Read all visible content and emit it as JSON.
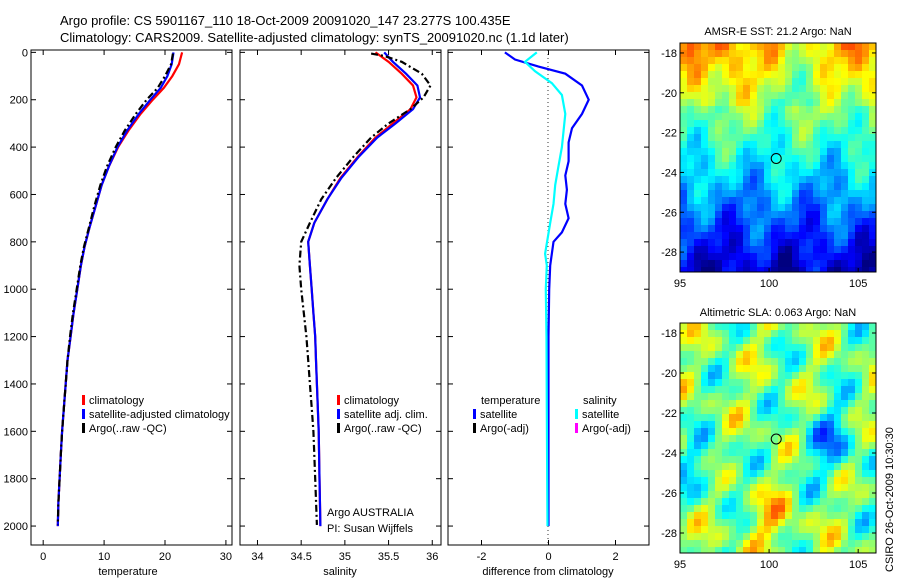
{
  "header": {
    "line1": "Argo profile: CS 5901167_110 18-Oct-2009 20091020_147 23.277S 100.435E",
    "line2": "Climatology: CARS2009. Satellite-adjusted climatology: synTS_20091020.nc (1.1d later)"
  },
  "credit": {
    "institution": "Argo AUSTRALIA",
    "pi": "PI: Susan Wijffels",
    "stamp": "CSIRO 26-Oct-2009 10:30:30"
  },
  "chart_data": [
    {
      "type": "line",
      "id": "temperature",
      "xlabel": "temperature",
      "ylabel": "",
      "xlim": [
        -2,
        31
      ],
      "ylim": [
        2080,
        -10
      ],
      "y_reversed": true,
      "xticks": [
        0,
        10,
        20,
        30
      ],
      "yticks": [
        0,
        200,
        400,
        600,
        800,
        1000,
        1200,
        1400,
        1600,
        1800,
        2000
      ],
      "legend": [
        "climatology",
        "satellite-adjusted climatology",
        "Argo(..raw -QC)"
      ],
      "series": [
        {
          "name": "climatology",
          "color": "#ff0000",
          "style": "solid",
          "points": [
            [
              22.8,
              0
            ],
            [
              22.3,
              50
            ],
            [
              21.2,
              100
            ],
            [
              19.8,
              150
            ],
            [
              18.0,
              200
            ],
            [
              16.0,
              260
            ],
            [
              14.0,
              330
            ],
            [
              12.3,
              400
            ],
            [
              10.8,
              480
            ],
            [
              9.6,
              560
            ],
            [
              8.6,
              650
            ],
            [
              7.6,
              740
            ],
            [
              6.8,
              820
            ],
            [
              6.2,
              900
            ],
            [
              5.6,
              1000
            ],
            [
              5.0,
              1100
            ],
            [
              4.5,
              1200
            ],
            [
              4.0,
              1300
            ],
            [
              3.7,
              1400
            ],
            [
              3.4,
              1500
            ],
            [
              3.1,
              1600
            ],
            [
              2.9,
              1700
            ],
            [
              2.7,
              1800
            ],
            [
              2.5,
              1900
            ],
            [
              2.4,
              2000
            ]
          ]
        },
        {
          "name": "satellite-adjusted climatology",
          "color": "#0000ff",
          "style": "solid",
          "points": [
            [
              21.4,
              0
            ],
            [
              21.1,
              50
            ],
            [
              20.4,
              100
            ],
            [
              19.3,
              150
            ],
            [
              17.6,
              200
            ],
            [
              15.7,
              260
            ],
            [
              13.8,
              330
            ],
            [
              12.2,
              400
            ],
            [
              10.8,
              480
            ],
            [
              9.6,
              560
            ],
            [
              8.6,
              650
            ],
            [
              7.6,
              740
            ],
            [
              6.8,
              820
            ],
            [
              6.2,
              900
            ],
            [
              5.6,
              1000
            ],
            [
              5.0,
              1100
            ],
            [
              4.5,
              1200
            ],
            [
              4.0,
              1300
            ],
            [
              3.7,
              1400
            ],
            [
              3.4,
              1500
            ],
            [
              3.1,
              1600
            ],
            [
              2.9,
              1700
            ],
            [
              2.7,
              1800
            ],
            [
              2.5,
              1900
            ],
            [
              2.4,
              2000
            ]
          ]
        },
        {
          "name": "Argo(..raw -QC)",
          "color": "#000000",
          "style": "dashdot",
          "points": [
            [
              21.3,
              5
            ],
            [
              21.0,
              50
            ],
            [
              20.0,
              100
            ],
            [
              18.8,
              150
            ],
            [
              17.0,
              200
            ],
            [
              15.2,
              260
            ],
            [
              13.4,
              330
            ],
            [
              11.9,
              400
            ],
            [
              10.5,
              480
            ],
            [
              9.4,
              560
            ],
            [
              8.4,
              650
            ],
            [
              7.5,
              740
            ],
            [
              6.7,
              820
            ],
            [
              6.1,
              900
            ],
            [
              5.5,
              1000
            ],
            [
              4.9,
              1100
            ],
            [
              4.4,
              1200
            ],
            [
              4.0,
              1300
            ],
            [
              3.7,
              1400
            ],
            [
              3.4,
              1500
            ],
            [
              3.1,
              1600
            ],
            [
              2.9,
              1700
            ],
            [
              2.7,
              1800
            ],
            [
              2.5,
              1900
            ],
            [
              2.4,
              1995
            ]
          ]
        }
      ]
    },
    {
      "type": "line",
      "id": "salinity",
      "xlabel": "salinity",
      "ylabel": "",
      "xlim": [
        33.8,
        36.1
      ],
      "ylim": [
        2080,
        -10
      ],
      "y_reversed": true,
      "xticks": [
        34,
        34.5,
        35,
        35.5,
        36
      ],
      "legend": [
        "climatology",
        "satellite adj. clim.",
        "Argo(..raw -QC)"
      ],
      "series": [
        {
          "name": "climatology",
          "color": "#ff0000",
          "style": "solid",
          "points": [
            [
              35.35,
              0
            ],
            [
              35.5,
              40
            ],
            [
              35.65,
              90
            ],
            [
              35.78,
              140
            ],
            [
              35.82,
              190
            ],
            [
              35.75,
              240
            ],
            [
              35.55,
              300
            ],
            [
              35.35,
              360
            ],
            [
              35.15,
              440
            ],
            [
              34.95,
              530
            ],
            [
              34.8,
              620
            ],
            [
              34.65,
              720
            ],
            [
              34.58,
              800
            ],
            [
              34.6,
              900
            ],
            [
              34.62,
              1000
            ],
            [
              34.64,
              1100
            ],
            [
              34.66,
              1200
            ],
            [
              34.67,
              1300
            ],
            [
              34.68,
              1400
            ],
            [
              34.69,
              1500
            ],
            [
              34.7,
              1600
            ],
            [
              34.71,
              1800
            ],
            [
              34.72,
              2000
            ]
          ]
        },
        {
          "name": "satellite adj. clim.",
          "color": "#0000ff",
          "style": "solid",
          "points": [
            [
              35.45,
              0
            ],
            [
              35.55,
              40
            ],
            [
              35.7,
              90
            ],
            [
              35.83,
              140
            ],
            [
              35.86,
              190
            ],
            [
              35.78,
              240
            ],
            [
              35.58,
              300
            ],
            [
              35.37,
              360
            ],
            [
              35.16,
              440
            ],
            [
              34.96,
              530
            ],
            [
              34.8,
              620
            ],
            [
              34.65,
              720
            ],
            [
              34.58,
              800
            ],
            [
              34.6,
              900
            ],
            [
              34.62,
              1000
            ],
            [
              34.64,
              1100
            ],
            [
              34.66,
              1200
            ],
            [
              34.67,
              1300
            ],
            [
              34.68,
              1400
            ],
            [
              34.69,
              1500
            ],
            [
              34.7,
              1600
            ],
            [
              34.71,
              1800
            ],
            [
              34.72,
              2000
            ]
          ]
        },
        {
          "name": "Argo(..raw -QC)",
          "color": "#000000",
          "style": "dashdot",
          "points": [
            [
              35.3,
              5
            ],
            [
              35.45,
              15
            ],
            [
              35.65,
              40
            ],
            [
              35.88,
              90
            ],
            [
              35.98,
              140
            ],
            [
              35.9,
              190
            ],
            [
              35.75,
              240
            ],
            [
              35.5,
              300
            ],
            [
              35.3,
              360
            ],
            [
              35.1,
              440
            ],
            [
              34.9,
              530
            ],
            [
              34.73,
              620
            ],
            [
              34.6,
              720
            ],
            [
              34.5,
              800
            ],
            [
              34.48,
              900
            ],
            [
              34.5,
              1000
            ],
            [
              34.53,
              1100
            ],
            [
              34.56,
              1200
            ],
            [
              34.58,
              1300
            ],
            [
              34.6,
              1400
            ],
            [
              34.62,
              1500
            ],
            [
              34.64,
              1600
            ],
            [
              34.66,
              1800
            ],
            [
              34.68,
              1995
            ]
          ]
        }
      ]
    },
    {
      "type": "line",
      "id": "difference",
      "xlabel": "difference from climatology",
      "ylabel": "",
      "xlim": [
        -3,
        3
      ],
      "ylim": [
        2080,
        -10
      ],
      "y_reversed": true,
      "xticks": [
        -2,
        0,
        2
      ],
      "legend_groups": [
        "temperature",
        "salinity"
      ],
      "legend": [
        "satellite",
        "Argo(-adj)",
        "satellite",
        "Argo(-adj)"
      ],
      "series": [
        {
          "name": "satellite",
          "group": "temperature",
          "color": "#0000ff",
          "style": "solid",
          "points": [
            [
              -1.3,
              0
            ],
            [
              -1.0,
              30
            ],
            [
              -0.3,
              60
            ],
            [
              0.5,
              90
            ],
            [
              1.0,
              140
            ],
            [
              1.2,
              200
            ],
            [
              1.0,
              260
            ],
            [
              0.7,
              320
            ],
            [
              0.6,
              380
            ],
            [
              0.6,
              460
            ],
            [
              0.5,
              520
            ],
            [
              0.55,
              580
            ],
            [
              0.5,
              640
            ],
            [
              0.6,
              700
            ],
            [
              0.4,
              760
            ],
            [
              0.15,
              800
            ],
            [
              0.05,
              900
            ],
            [
              0.02,
              1000
            ],
            [
              0.0,
              1200
            ],
            [
              0.0,
              1500
            ],
            [
              0.0,
              2000
            ]
          ]
        },
        {
          "name": "satellite",
          "group": "salinity",
          "color": "#00ffff",
          "style": "solid",
          "points": [
            [
              -0.35,
              0
            ],
            [
              -0.7,
              40
            ],
            [
              -0.4,
              80
            ],
            [
              0.1,
              130
            ],
            [
              0.4,
              180
            ],
            [
              0.5,
              260
            ],
            [
              0.45,
              330
            ],
            [
              0.4,
              400
            ],
            [
              0.3,
              480
            ],
            [
              0.2,
              560
            ],
            [
              0.15,
              640
            ],
            [
              0.05,
              720
            ],
            [
              -0.1,
              850
            ],
            [
              -0.05,
              900
            ],
            [
              -0.08,
              1000
            ],
            [
              -0.06,
              1200
            ],
            [
              -0.05,
              1500
            ],
            [
              -0.04,
              1800
            ],
            [
              -0.03,
              2000
            ]
          ]
        },
        {
          "name": "Argo(-adj)",
          "group": "temperature",
          "color": "#000000",
          "style": "dashdot",
          "points": []
        },
        {
          "name": "Argo(-adj)",
          "group": "salinity",
          "color": "#ff00ff",
          "style": "dashdot",
          "points": []
        }
      ]
    },
    {
      "type": "heatmap",
      "id": "sst_map",
      "title": "AMSR-E SST: 21.2 Argo: NaN",
      "xlim": [
        95,
        106
      ],
      "ylim": [
        -29,
        -17.5
      ],
      "xticks": [],
      "yticks": [
        -18,
        -20,
        -22,
        -24,
        -26,
        -28
      ],
      "marker": {
        "lon": 100.4,
        "lat": -23.3
      },
      "colormap": "jet"
    },
    {
      "type": "heatmap",
      "id": "sla_map",
      "title": "Altimetric SLA: 0.063 Argo: NaN",
      "xlim": [
        95,
        106
      ],
      "ylim": [
        -29,
        -17.5
      ],
      "xticks": [
        95,
        100,
        105
      ],
      "yticks": [
        -18,
        -20,
        -22,
        -24,
        -26,
        -28
      ],
      "marker": {
        "lon": 100.4,
        "lat": -23.3
      },
      "colormap": "jet"
    }
  ]
}
